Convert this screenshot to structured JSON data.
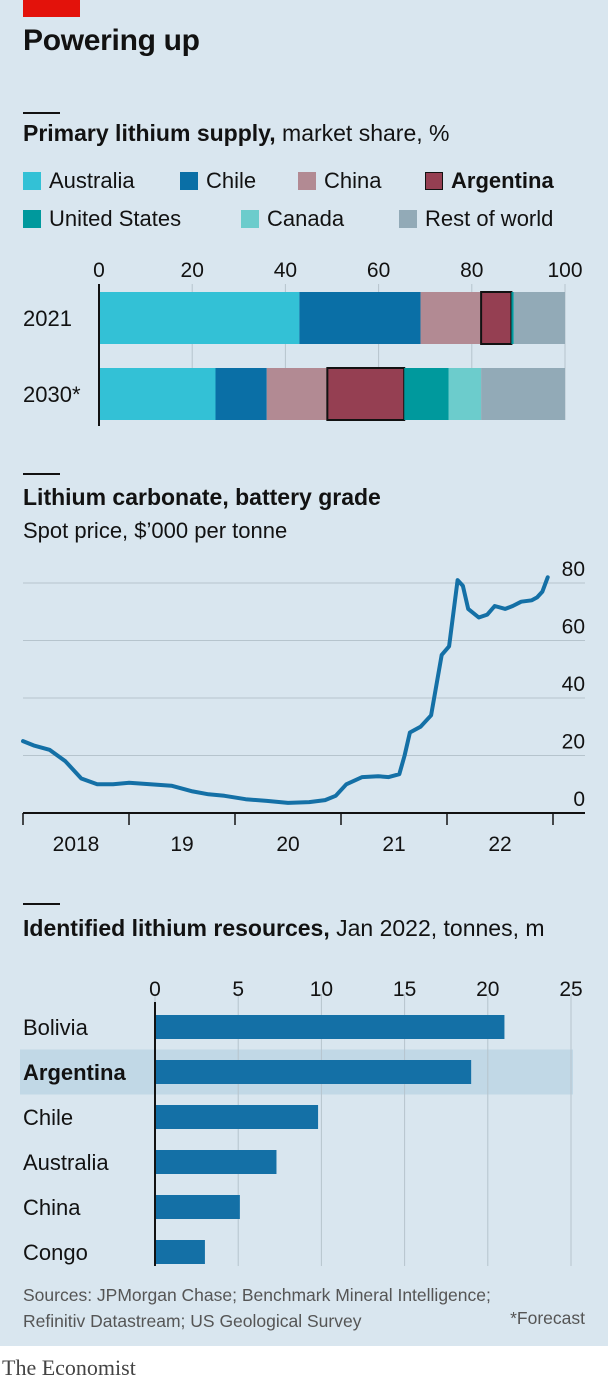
{
  "header": {
    "title": "Powering up"
  },
  "colors": {
    "background": "#d9e6ef",
    "brand_red": "#e3120b",
    "australia": "#33c1d6",
    "chile": "#0a6fa6",
    "china": "#b28a93",
    "argentina": "#953f52",
    "united_states": "#00999d",
    "canada": "#6ccccc",
    "rest_of_world": "#92aab7",
    "line": "#1470a6",
    "bar": "#1470a6",
    "highlight_row": "#c1d8e6",
    "grid": "#b6c4cd"
  },
  "chart1": {
    "title_bold": "Primary lithium supply,",
    "title_rest": " market share, %",
    "legend": [
      {
        "label": "Australia",
        "color_key": "australia"
      },
      {
        "label": "Chile",
        "color_key": "chile"
      },
      {
        "label": "China",
        "color_key": "china"
      },
      {
        "label": "Argentina",
        "color_key": "argentina",
        "bold": true
      },
      {
        "label": "United States",
        "color_key": "united_states"
      },
      {
        "label": "Canada",
        "color_key": "canada"
      },
      {
        "label": "Rest of world",
        "color_key": "rest_of_world"
      }
    ]
  },
  "chart2": {
    "title": "Lithium carbonate, battery grade",
    "subtitle": "Spot price, $’000 per tonne"
  },
  "chart3": {
    "title_bold": "Identified lithium resources,",
    "title_rest": " Jan 2022, tonnes, m"
  },
  "chart_data": [
    {
      "type": "bar",
      "orientation": "horizontal-stacked",
      "categories": [
        "2021",
        "2030*"
      ],
      "series": [
        {
          "name": "Australia",
          "values": [
            43,
            25
          ]
        },
        {
          "name": "Chile",
          "values": [
            26,
            11
          ]
        },
        {
          "name": "China",
          "values": [
            13,
            13
          ]
        },
        {
          "name": "Argentina",
          "values": [
            6.5,
            16.5
          ]
        },
        {
          "name": "United States",
          "values": [
            0.5,
            9.5
          ]
        },
        {
          "name": "Canada",
          "values": [
            0,
            7
          ]
        },
        {
          "name": "Rest of world",
          "values": [
            11,
            18
          ]
        }
      ],
      "xlim": [
        0,
        100
      ],
      "ticks": [
        0,
        20,
        40,
        60,
        80,
        100
      ],
      "highlight": "Argentina"
    },
    {
      "type": "line",
      "ylim": [
        0,
        80
      ],
      "yticks": [
        0,
        20,
        40,
        60,
        80
      ],
      "xlim": [
        2018.0,
        2023.0
      ],
      "xtick_labels": [
        "2018",
        "19",
        "20",
        "21",
        "22"
      ],
      "x": [
        2018.0,
        2018.1,
        2018.25,
        2018.4,
        2018.55,
        2018.7,
        2018.85,
        2019.0,
        2019.2,
        2019.4,
        2019.6,
        2019.75,
        2019.9,
        2020.1,
        2020.3,
        2020.5,
        2020.7,
        2020.85,
        2020.95,
        2021.05,
        2021.2,
        2021.35,
        2021.45,
        2021.55,
        2021.6,
        2021.65,
        2021.75,
        2021.85,
        2021.95,
        2022.02,
        2022.1,
        2022.15,
        2022.2,
        2022.3,
        2022.38,
        2022.45,
        2022.55,
        2022.62,
        2022.7,
        2022.8,
        2022.85,
        2022.9,
        2022.95
      ],
      "y": [
        25,
        23.5,
        22,
        18,
        12,
        10,
        10,
        10.5,
        10,
        9.5,
        7.5,
        6.5,
        6,
        4.8,
        4.2,
        3.5,
        3.8,
        4.5,
        6,
        10,
        12.5,
        12.8,
        12.5,
        13.5,
        20,
        28,
        30,
        34,
        55,
        58,
        81,
        79,
        71,
        68,
        69,
        72,
        71,
        72,
        73.5,
        74,
        75,
        77,
        82
      ]
    },
    {
      "type": "bar",
      "orientation": "horizontal",
      "categories": [
        "Bolivia",
        "Argentina",
        "Chile",
        "Australia",
        "China",
        "Congo"
      ],
      "values": [
        21,
        19,
        9.8,
        7.3,
        5.1,
        3
      ],
      "xlim": [
        0,
        25
      ],
      "ticks": [
        0,
        5,
        10,
        15,
        20,
        25
      ],
      "highlight": "Argentina"
    }
  ],
  "footer": {
    "sources_line1": "Sources: JPMorgan Chase; Benchmark Mineral Intelligence;",
    "sources_line2": "Refinitiv Datastream; US Geological Survey",
    "forecast_note": "*Forecast",
    "brand": "The Economist"
  }
}
